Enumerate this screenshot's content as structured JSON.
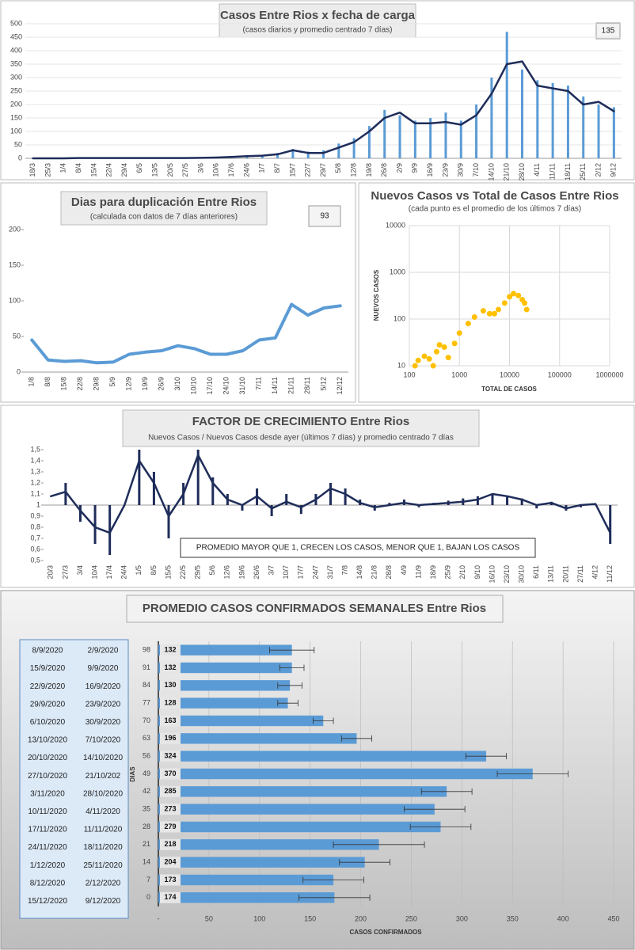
{
  "chart_data": [
    {
      "type": "combo",
      "title": "Casos Entre Rios x fecha de carga",
      "subtitle": "(casos diarios y promedio  centrado 7 días)",
      "annotation": "135",
      "categories": [
        "18/3",
        "25/3",
        "1/4",
        "8/4",
        "15/4",
        "22/4",
        "29/4",
        "6/5",
        "13/5",
        "20/5",
        "27/5",
        "3/6",
        "10/6",
        "17/6",
        "24/6",
        "1/7",
        "8/7",
        "15/7",
        "22/7",
        "29/7",
        "5/8",
        "12/8",
        "19/8",
        "26/8",
        "2/9",
        "9/9",
        "16/9",
        "23/9",
        "30/9",
        "7/10",
        "14/10",
        "21/10",
        "28/10",
        "4/11",
        "11/11",
        "18/11",
        "25/11",
        "2/12",
        "9/12"
      ],
      "series": [
        {
          "type": "bar",
          "color": "#5b9bd5",
          "values": [
            0,
            1,
            1,
            2,
            1,
            2,
            1,
            1,
            2,
            1,
            2,
            3,
            4,
            6,
            10,
            12,
            20,
            35,
            25,
            30,
            55,
            75,
            120,
            180,
            160,
            140,
            150,
            170,
            140,
            200,
            300,
            470,
            330,
            290,
            280,
            270,
            230,
            200,
            190
          ]
        },
        {
          "type": "line",
          "color": "#1f2d5a",
          "values": [
            0,
            0,
            0,
            1,
            1,
            1,
            1,
            1,
            1,
            1,
            1,
            2,
            3,
            5,
            8,
            10,
            15,
            30,
            20,
            20,
            40,
            60,
            100,
            150,
            170,
            130,
            130,
            135,
            125,
            160,
            240,
            350,
            360,
            270,
            260,
            250,
            200,
            210,
            175
          ]
        }
      ],
      "ylim": [
        0,
        500
      ],
      "yticks": [
        0,
        50,
        100,
        150,
        200,
        250,
        300,
        350,
        400,
        450,
        500
      ],
      "grid": true
    },
    {
      "type": "line",
      "title": "Dias para duplicación Entre Rios",
      "subtitle": "(calculada con datos de 7 días anteriores)",
      "annotation": "93",
      "color": "#5b9bd5",
      "categories": [
        "1/8",
        "8/8",
        "15/8",
        "22/8",
        "29/8",
        "5/9",
        "12/9",
        "19/9",
        "26/9",
        "3/10",
        "10/10",
        "17/10",
        "24/10",
        "31/10",
        "7/11",
        "14/11",
        "21/11",
        "28/11",
        "5/12",
        "12/12"
      ],
      "values": [
        45,
        17,
        15,
        16,
        13,
        14,
        25,
        28,
        30,
        37,
        33,
        25,
        25,
        30,
        45,
        48,
        95,
        80,
        90,
        93
      ],
      "ylim": [
        0,
        200
      ],
      "yticks": [
        0,
        50,
        100,
        150,
        200
      ],
      "grid": false
    },
    {
      "type": "scatter",
      "title": "Nuevos Casos vs Total de Casos Entre Rios",
      "subtitle": "(cada punto es el promedio de los últimos 7 días)",
      "x_label": "TOTAL DE CASOS",
      "y_label": "NUEVOS CASOS",
      "color": "#ffc000",
      "xscale": "log",
      "yscale": "log",
      "x": [
        130,
        150,
        200,
        250,
        300,
        350,
        400,
        500,
        600,
        800,
        1000,
        1500,
        2000,
        3000,
        4000,
        5000,
        6000,
        8000,
        10000,
        12000,
        15000,
        18000,
        20000,
        22000
      ],
      "values": [
        10,
        13,
        16,
        14,
        10,
        20,
        28,
        25,
        15,
        30,
        50,
        80,
        110,
        150,
        130,
        130,
        160,
        220,
        300,
        350,
        320,
        260,
        220,
        160
      ],
      "xlim": [
        100,
        1000000
      ],
      "xticks": [
        100,
        1000,
        10000,
        100000,
        1000000
      ],
      "ylim": [
        10,
        10000
      ],
      "yticks": [
        10,
        100,
        1000,
        10000
      ],
      "grid": true
    },
    {
      "type": "combo",
      "title": "FACTOR DE CRECIMIENTO Entre Rios",
      "subtitle": "Nuevos Casos  / Nuevos Casos desde ayer (últimos 7 días) y promedio  centrado 7 días",
      "annotation": "PROMEDIO MAYOR QUE 1, CRECEN LOS CASOS, MENOR QUE 1, BAJAN LOS CASOS",
      "bar_baseline": 1,
      "categories": [
        "20/3",
        "27/3",
        "3/4",
        "10/4",
        "17/4",
        "24/4",
        "1/5",
        "8/5",
        "15/5",
        "22/5",
        "29/5",
        "5/6",
        "12/6",
        "19/6",
        "26/6",
        "3/7",
        "10/7",
        "17/7",
        "24/7",
        "31/7",
        "7/8",
        "14/8",
        "21/8",
        "28/8",
        "4/9",
        "11/9",
        "18/9",
        "25/9",
        "2/10",
        "9/10",
        "16/10",
        "23/10",
        "30/10",
        "6/11",
        "13/11",
        "20/11",
        "27/11",
        "4/12",
        "11/12"
      ],
      "series": [
        {
          "type": "bar",
          "color": "#1f2d5a",
          "values": [
            1.0,
            1.2,
            0.85,
            0.65,
            0.55,
            1.0,
            1.5,
            1.3,
            0.7,
            1.2,
            1.5,
            1.25,
            1.1,
            0.95,
            1.15,
            0.9,
            1.1,
            0.92,
            1.1,
            1.2,
            1.15,
            1.05,
            0.95,
            1.02,
            1.05,
            0.98,
            1.02,
            1.04,
            1.06,
            1.08,
            1.1,
            1.08,
            1.06,
            0.97,
            1.03,
            0.95,
            0.98,
            1.0,
            0.65
          ]
        },
        {
          "type": "line",
          "color": "#1f2d5a",
          "values": [
            1.08,
            1.12,
            0.95,
            0.8,
            0.75,
            1.0,
            1.4,
            1.2,
            0.9,
            1.1,
            1.45,
            1.2,
            1.05,
            1.0,
            1.08,
            0.97,
            1.03,
            0.98,
            1.05,
            1.15,
            1.1,
            1.02,
            0.98,
            1.0,
            1.02,
            1.0,
            1.01,
            1.02,
            1.03,
            1.05,
            1.1,
            1.08,
            1.05,
            1.0,
            1.02,
            0.97,
            1.0,
            1.01,
            0.75
          ]
        }
      ],
      "ylim": [
        0.5,
        1.5
      ],
      "yticks": [
        {
          "value": 0.5,
          "label": "0,5"
        },
        {
          "value": 0.6,
          "label": "0,6"
        },
        {
          "value": 0.7,
          "label": "0,7"
        },
        {
          "value": 0.8,
          "label": "0,8"
        },
        {
          "value": 0.9,
          "label": "0,9"
        },
        {
          "value": 1,
          "label": "1"
        },
        {
          "value": 1.1,
          "label": "1,1"
        },
        {
          "value": 1.2,
          "label": "1,2"
        },
        {
          "value": 1.3,
          "label": "1,3"
        },
        {
          "value": 1.4,
          "label": "1,4"
        },
        {
          "value": 1.5,
          "label": "1,5"
        }
      ],
      "grid": false
    },
    {
      "type": "barh",
      "title": "PROMEDIO CASOS CONFIRMADOS SEMANALES Entre Rios",
      "x_label": "CASOS CONFIRMADOS",
      "y_label": "DIAS",
      "color": "#5b9bd5",
      "categories": [
        "98",
        "91",
        "84",
        "77",
        "70",
        "63",
        "56",
        "49",
        "42",
        "35",
        "28",
        "21",
        "14",
        "7",
        "0"
      ],
      "values": [
        132,
        132,
        130,
        128,
        163,
        196,
        324,
        370,
        285,
        273,
        279,
        218,
        204,
        173,
        174
      ],
      "errors": [
        22,
        12,
        12,
        10,
        10,
        15,
        20,
        35,
        25,
        30,
        30,
        45,
        25,
        30,
        35
      ],
      "date_ranges": [
        [
          "8/9/2020",
          "2/9/2020"
        ],
        [
          "15/9/2020",
          "9/9/2020"
        ],
        [
          "22/9/2020",
          "16/9/2020"
        ],
        [
          "29/9/2020",
          "23/9/2020"
        ],
        [
          "6/10/2020",
          "30/9/2020"
        ],
        [
          "13/10/2020",
          "7/10/2020"
        ],
        [
          "20/10/2020",
          "14/10/2020"
        ],
        [
          "27/10/2020",
          "21/10/202"
        ],
        [
          "3/11/2020",
          "28/10/2020"
        ],
        [
          "10/11/2020",
          "4/11/2020"
        ],
        [
          "17/11/2020",
          "11/11/2020"
        ],
        [
          "24/11/2020",
          "18/11/2020"
        ],
        [
          "1/12/2020",
          "25/11/2020"
        ],
        [
          "8/12/2020",
          "2/12/2020"
        ],
        [
          "15/12/2020",
          "9/12/2020"
        ]
      ],
      "xlim": [
        0,
        450
      ],
      "xticks": [
        {
          "value": 0,
          "label": "-"
        },
        50,
        100,
        150,
        200,
        250,
        300,
        350,
        400,
        450
      ],
      "grid": true
    }
  ]
}
